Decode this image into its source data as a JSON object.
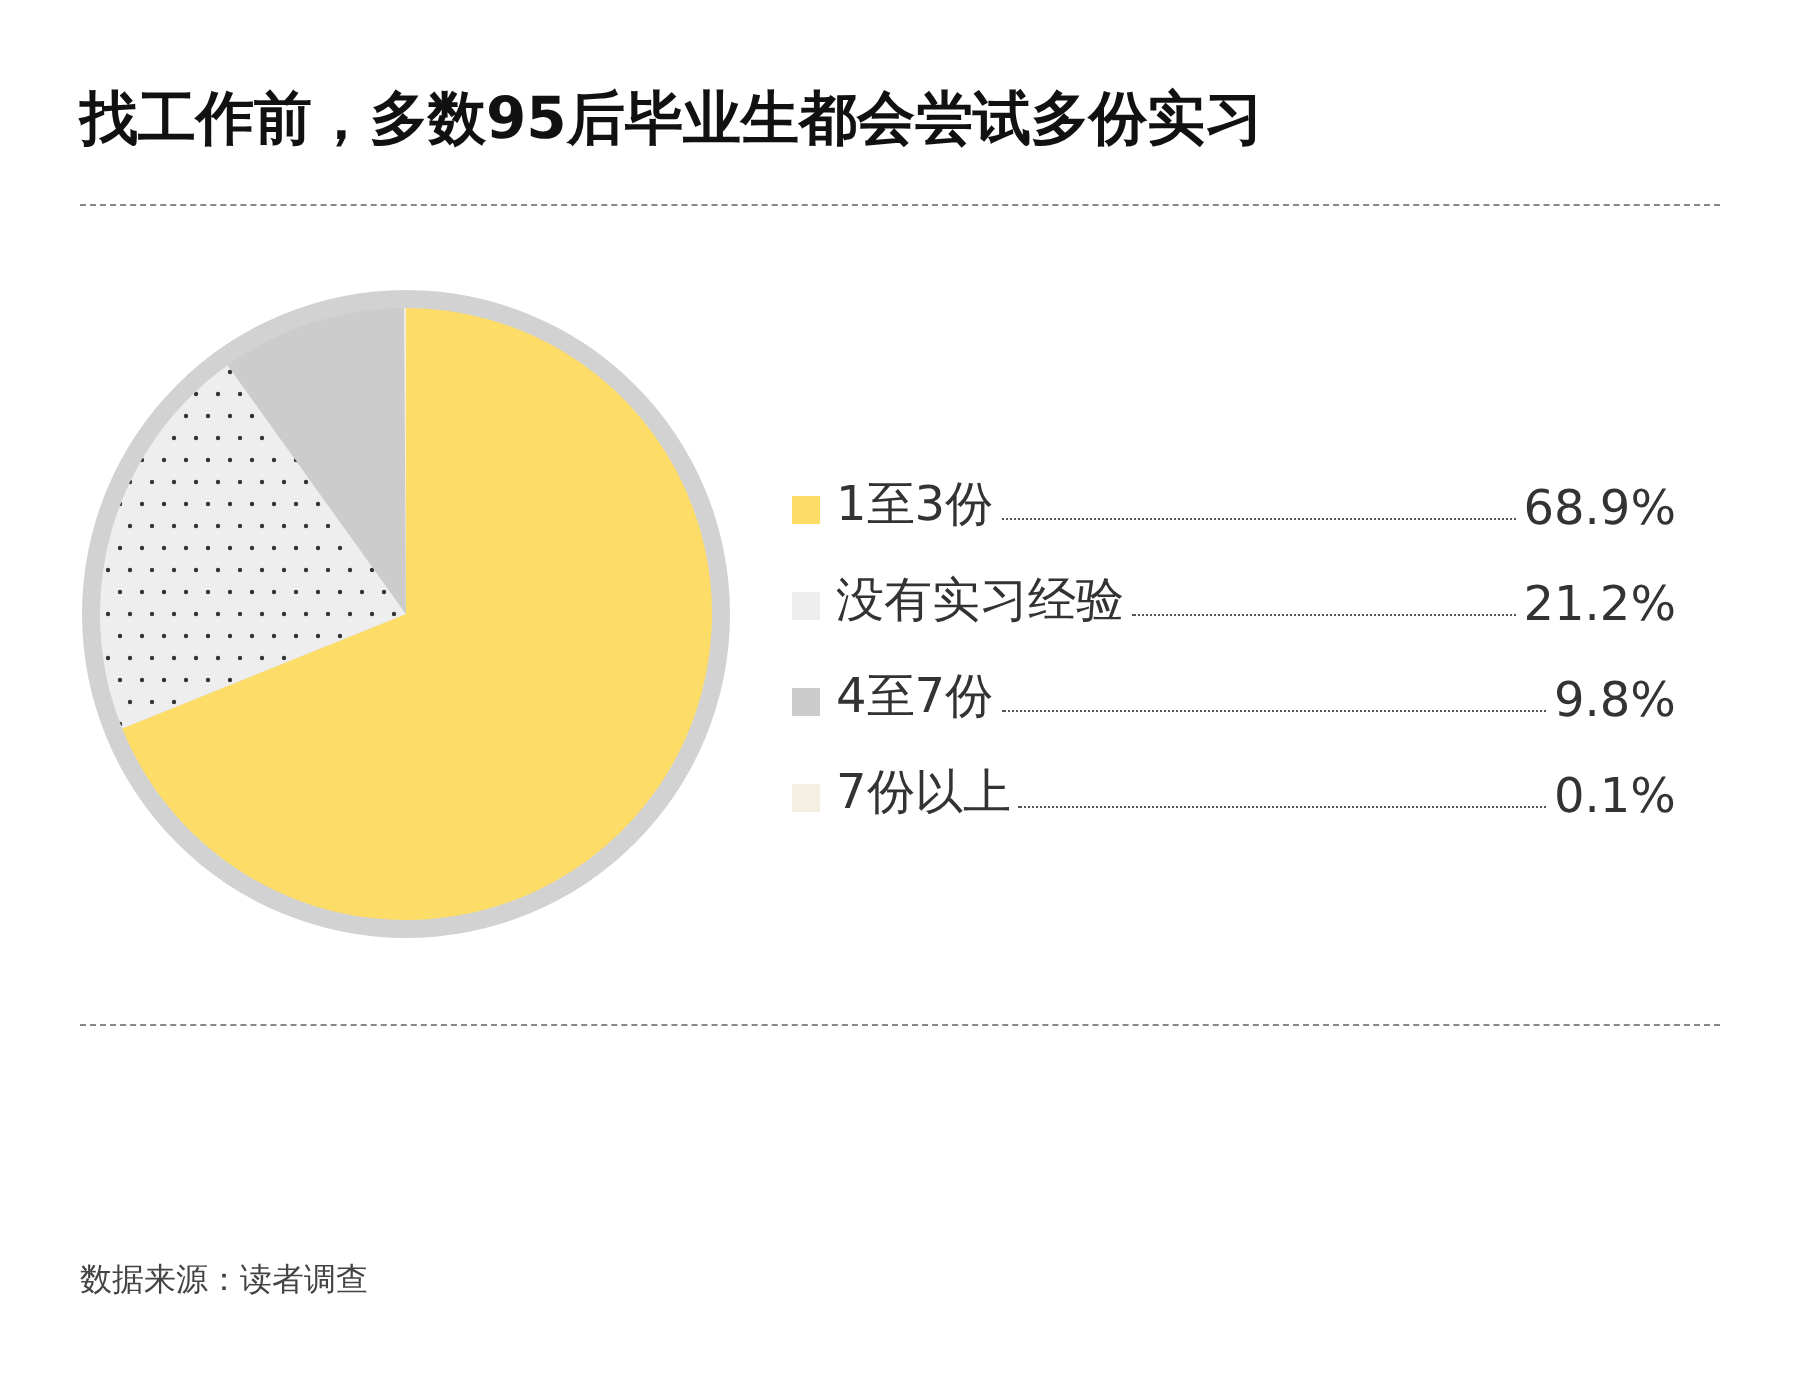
{
  "chart_data": {
    "type": "pie",
    "title": "找工作前，多数95后毕业生都会尝试多份实习",
    "categories": [
      "1至3份",
      "没有实习经验",
      "4至7份",
      "7份以上"
    ],
    "values": [
      68.9,
      21.2,
      9.8,
      0.1
    ],
    "colors": [
      "#fddc67",
      "#eeeeee",
      "#cccccc",
      "#f4efe2"
    ],
    "value_labels": [
      "68.9%",
      "21.2%",
      "9.8%",
      "0.1%"
    ],
    "legend": "right",
    "annotations": [
      "数据来源：读者调查"
    ]
  }
}
